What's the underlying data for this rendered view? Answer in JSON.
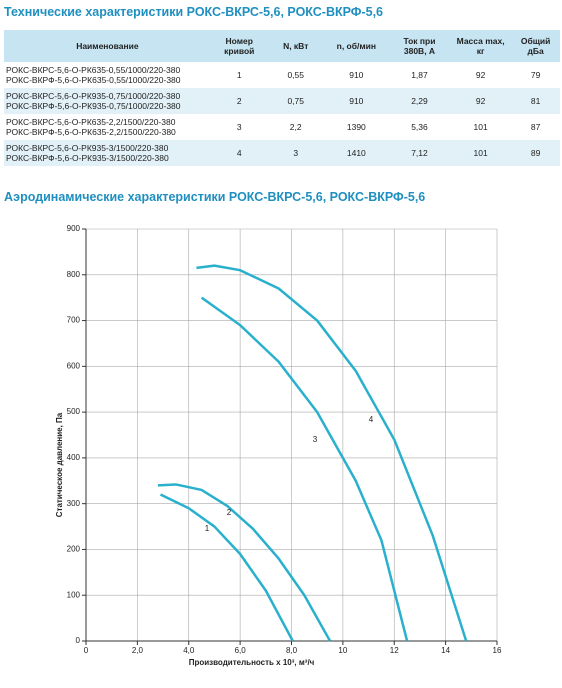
{
  "header": {
    "title": "Технические характеристики РОКС-ВКРС-5,6, РОКС-ВКРФ-5,6"
  },
  "table": {
    "columns": [
      "Наименование",
      "Номер кривой",
      "N, кВт",
      "n, об/мин",
      "Ток при 380В, А",
      "Масса max, кг",
      "Общий дБа"
    ],
    "rows": [
      [
        [
          "РОКС-ВКРС-5,6-О-РК635-0,55/1000/220-380",
          "РОКС-ВКРФ-5,6-О-РК635-0,55/1000/220-380"
        ],
        "1",
        "0,55",
        "910",
        "1,87",
        "92",
        "79"
      ],
      [
        [
          "РОКС-ВКРС-5,6-О-РК935-0,75/1000/220-380",
          "РОКС-ВКРФ-5,6-О-РК935-0,75/1000/220-380"
        ],
        "2",
        "0,75",
        "910",
        "2,29",
        "92",
        "81"
      ],
      [
        [
          "РОКС-ВКРС-5,6-О-РК635-2,2/1500/220-380",
          "РОКС-ВКРФ-5,6-О-РК635-2,2/1500/220-380"
        ],
        "3",
        "2,2",
        "1390",
        "5,36",
        "101",
        "87"
      ],
      [
        [
          "РОКС-ВКРС-5,6-О-РК935-3/1500/220-380",
          "РОКС-ВКРФ-5,6-О-РК935-3/1500/220-380"
        ],
        "4",
        "3",
        "1410",
        "7,12",
        "101",
        "89"
      ]
    ]
  },
  "section": {
    "title": "Аэродинамические характеристики РОКС-ВКРС-5,6, РОКС-ВКРФ-5,6"
  },
  "chart_data": {
    "type": "line",
    "x_label": "Производительность х 10³, м³/ч",
    "y_label": "Статическое давление, Па",
    "xlim": [
      0,
      16
    ],
    "xticks": [
      0,
      {
        "value": 2,
        "label": "2,0"
      },
      {
        "value": 4,
        "label": "4,0"
      },
      {
        "value": 6,
        "label": "6,0"
      },
      {
        "value": 8,
        "label": "8,0"
      },
      10,
      12,
      14,
      16
    ],
    "ylim": [
      0,
      900
    ],
    "yticks": [
      0,
      100,
      200,
      300,
      400,
      500,
      600,
      700,
      800,
      900
    ],
    "grid": true,
    "series": [
      {
        "name": "1",
        "color": "#29b0cc",
        "x": [
          2.9,
          4,
          5,
          6,
          7,
          8.05
        ],
        "values": [
          320,
          290,
          250,
          190,
          110,
          0
        ]
      },
      {
        "name": "2",
        "color": "#29b0cc",
        "x": [
          2.8,
          3.5,
          4.5,
          5.5,
          6.5,
          7.5,
          8.5,
          9.5
        ],
        "values": [
          340,
          342,
          330,
          295,
          245,
          180,
          100,
          0
        ]
      },
      {
        "name": "3",
        "color": "#29b0cc",
        "x": [
          4.5,
          6,
          7.5,
          9,
          10.5,
          11.5,
          12.5
        ],
        "values": [
          750,
          690,
          610,
          500,
          350,
          220,
          0
        ]
      },
      {
        "name": "4",
        "color": "#29b0cc",
        "x": [
          4.3,
          5,
          6,
          7.5,
          9,
          10.5,
          12,
          13.5,
          14.8
        ],
        "values": [
          815,
          820,
          810,
          770,
          700,
          590,
          440,
          230,
          0
        ]
      }
    ]
  }
}
